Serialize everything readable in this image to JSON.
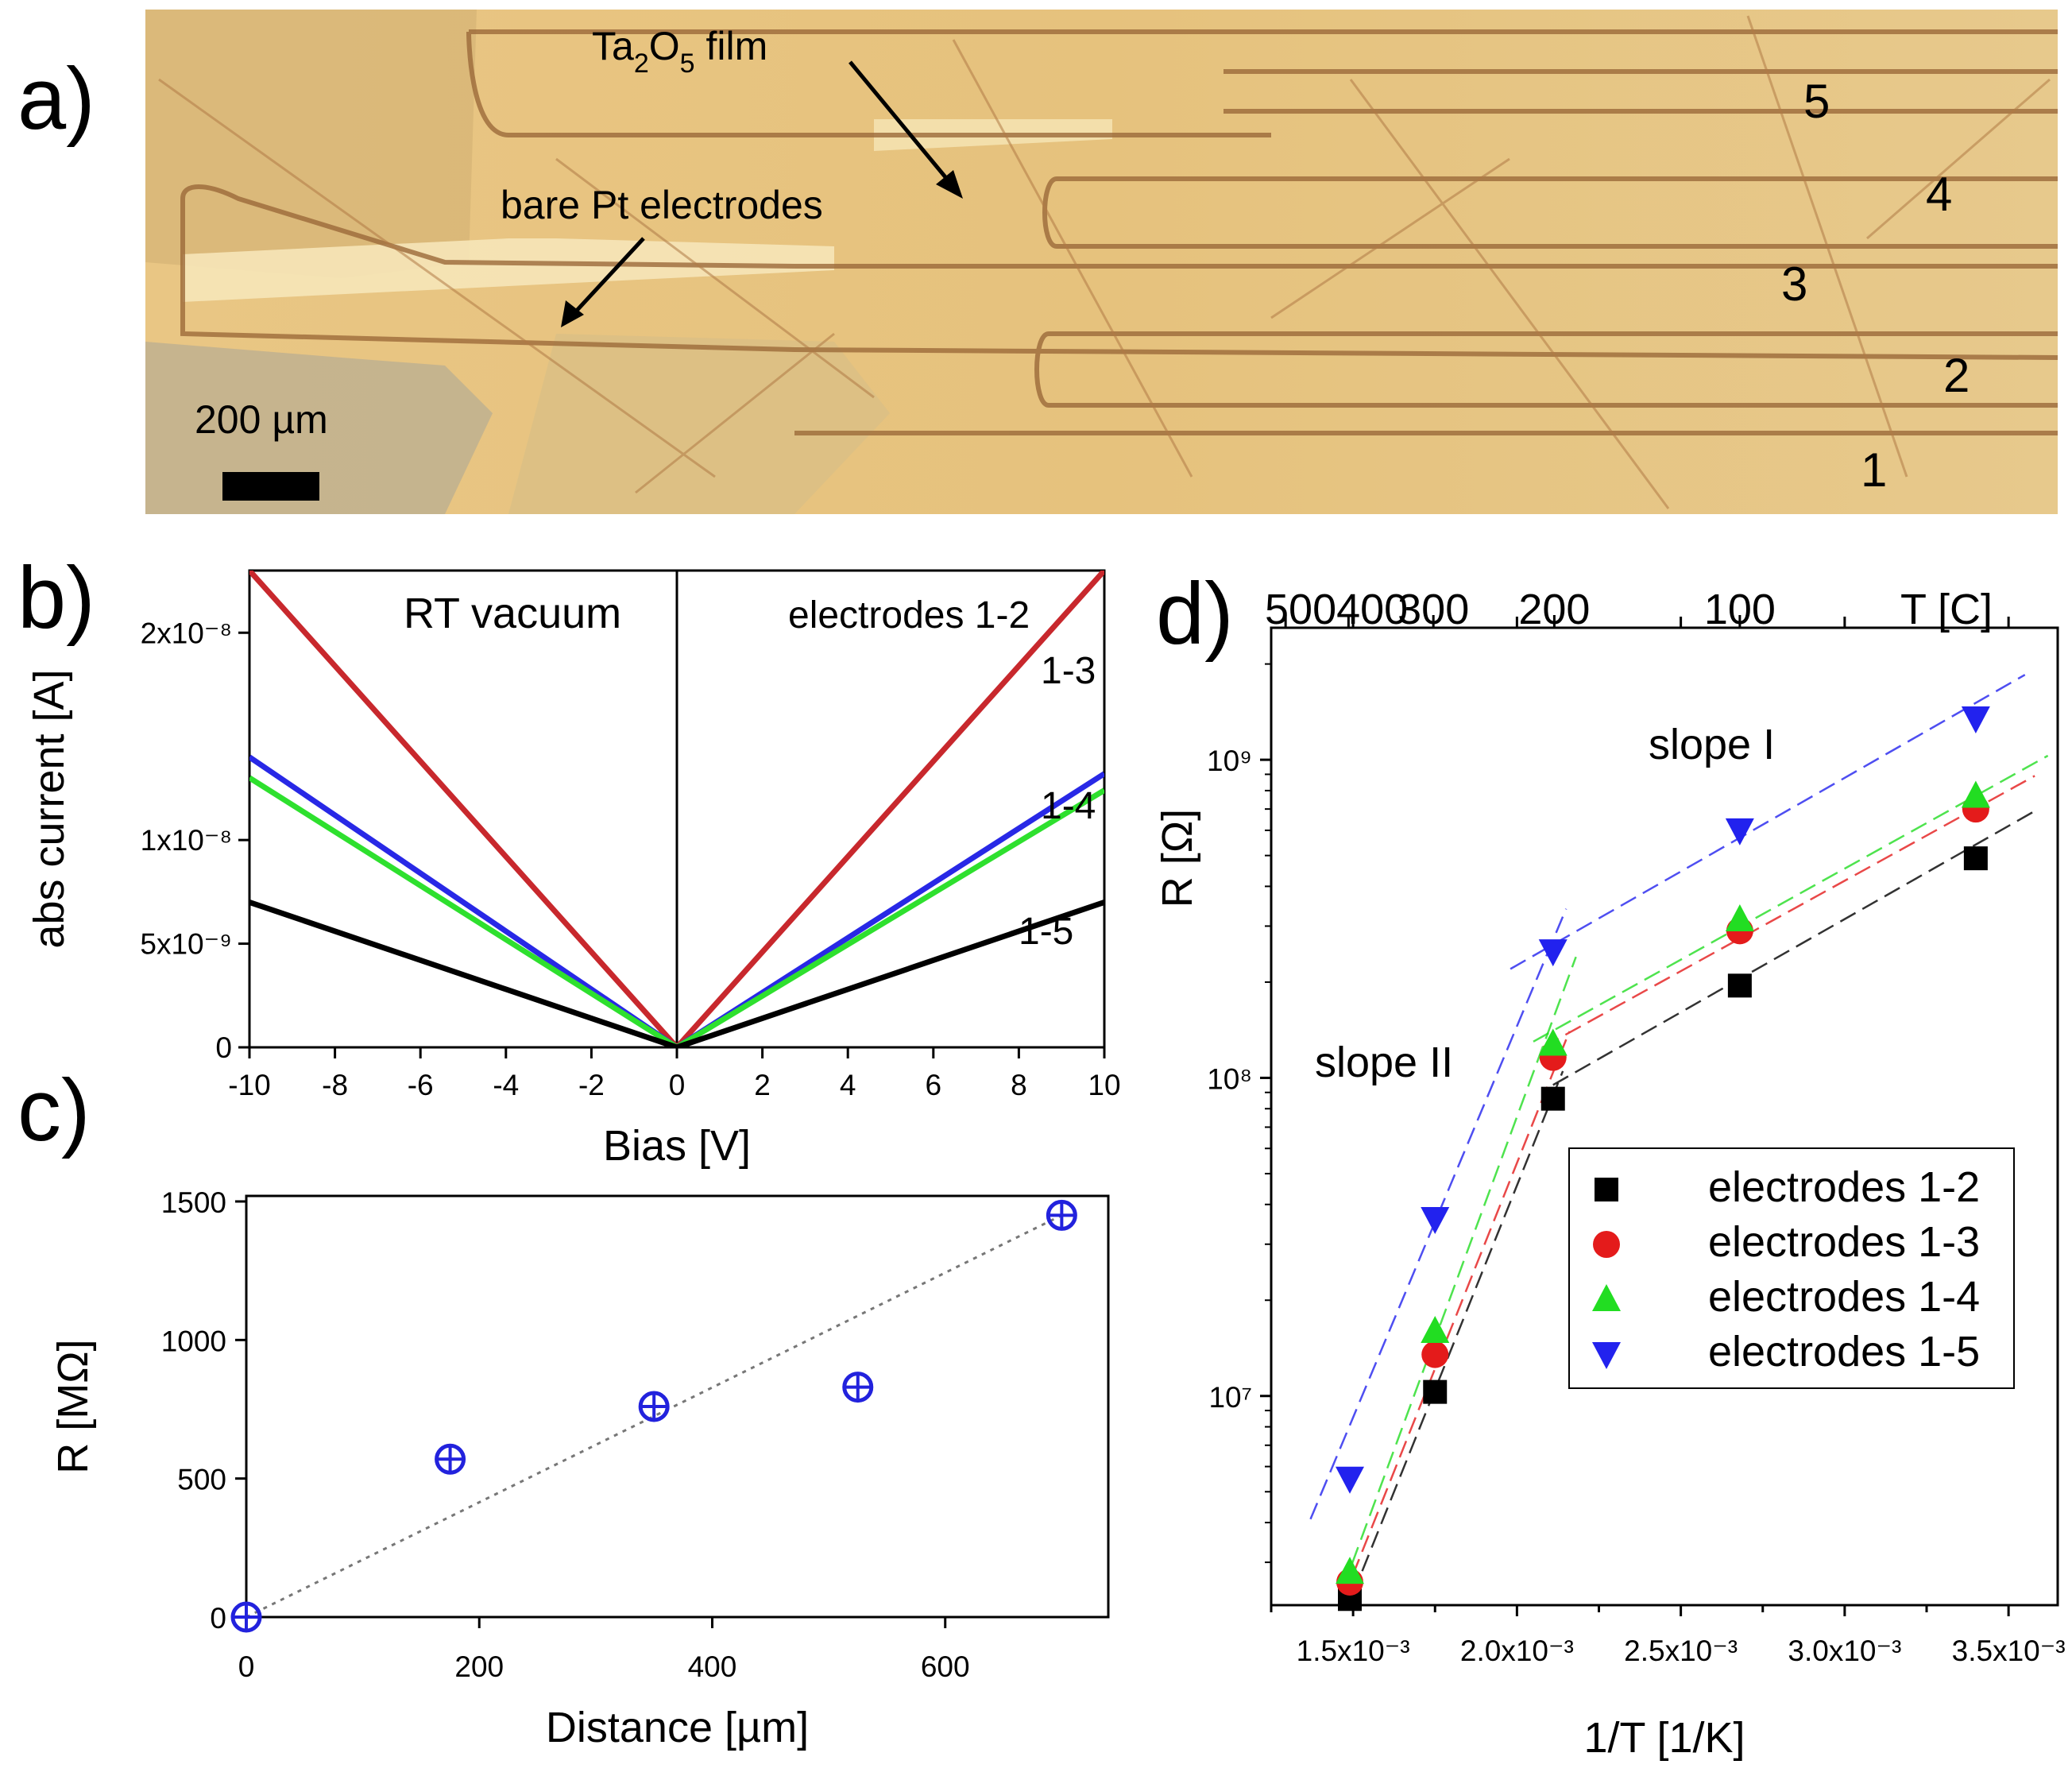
{
  "panels": {
    "a": "a)",
    "b": "b)",
    "c": "c)",
    "d": "d)"
  },
  "photo": {
    "film_label_main": "Ta",
    "film_label_sub1": "2",
    "film_label_mid": "O",
    "film_label_sub2": "5",
    "film_label_end": " film",
    "electrode_label": "bare Pt electrodes",
    "scale_bar": "200 µm",
    "electrode_numbers": [
      "5",
      "4",
      "3",
      "2",
      "1"
    ]
  },
  "chart_data": [
    {
      "id": "b",
      "type": "line",
      "title": "",
      "xlabel": "Bias [V]",
      "ylabel": "abs current [A]",
      "xlim": [
        -10,
        10
      ],
      "ylim": [
        0,
        2.3e-08
      ],
      "xticks": [
        -10,
        -8,
        -6,
        -4,
        -2,
        0,
        2,
        4,
        6,
        8,
        10
      ],
      "ytick_values": [
        0,
        5e-09,
        1e-08,
        2e-08
      ],
      "ytick_labels": [
        "0",
        "5x10⁻⁹",
        "1x10⁻⁸",
        "2x10⁻⁸"
      ],
      "annotations": [
        "RT vacuum",
        "electrodes 1-2",
        "1-3",
        "1-4",
        "1-5"
      ],
      "series": [
        {
          "name": "1-2",
          "color": "#c8282d",
          "x": [
            -10,
            0,
            10
          ],
          "y": [
            2.3e-08,
            0,
            2.3e-08
          ]
        },
        {
          "name": "1-3",
          "color": "#2828e6",
          "x": [
            -10,
            0,
            10
          ],
          "y": [
            1.4e-08,
            0,
            1.32e-08
          ]
        },
        {
          "name": "1-4",
          "color": "#2ee02e",
          "x": [
            -10,
            0,
            10
          ],
          "y": [
            1.3e-08,
            0,
            1.24e-08
          ]
        },
        {
          "name": "1-5",
          "color": "#000000",
          "x": [
            -10,
            0,
            10
          ],
          "y": [
            7e-09,
            0,
            7e-09
          ]
        }
      ]
    },
    {
      "id": "c",
      "type": "scatter",
      "xlabel": "Distance [µm]",
      "ylabel": "R [MΩ]",
      "xlim": [
        0,
        740
      ],
      "ylim": [
        0,
        1520
      ],
      "xticks": [
        0,
        200,
        400,
        600
      ],
      "yticks": [
        0,
        500,
        1000,
        1500
      ],
      "points": {
        "x": [
          0,
          175,
          350,
          525,
          700
        ],
        "y": [
          0,
          570,
          760,
          830,
          1450
        ]
      },
      "fit": {
        "x": [
          0,
          700
        ],
        "y": [
          0,
          1450
        ]
      },
      "color": "#2222dd"
    },
    {
      "id": "d",
      "type": "scatter",
      "xlabel": "1/T [1/K]",
      "ylabel": "R [Ω]",
      "top_axis_label": "T [C]",
      "xlim": [
        0.00125,
        0.00365
      ],
      "ylim_log": [
        2200000.0,
        2600000000.0
      ],
      "xtick_values": [
        0.0015,
        0.002,
        0.0025,
        0.003,
        0.0035
      ],
      "xtick_labels": [
        "1.5x10⁻³",
        "2.0x10⁻³",
        "2.5x10⁻³",
        "3.0x10⁻³",
        "3.5x10⁻³"
      ],
      "ytick_values": [
        10000000.0,
        100000000.0,
        1000000000.0
      ],
      "ytick_labels": [
        "10⁷",
        "10⁸",
        "10⁹"
      ],
      "top_ticks": [
        {
          "inv": 0.001294,
          "label": "500"
        },
        {
          "inv": 0.001486,
          "label": "400"
        },
        {
          "inv": 0.001745,
          "label": "300"
        },
        {
          "inv": 0.002114,
          "label": "200"
        },
        {
          "inv": 0.00268,
          "label": "100"
        }
      ],
      "annotations": [
        "slope I",
        "slope II"
      ],
      "legend_position": "lower-right",
      "series": [
        {
          "name": "electrodes 1-2",
          "marker": "square",
          "color": "#000000",
          "x": [
            0.00149,
            0.00175,
            0.00211,
            0.00268,
            0.0034
          ],
          "y": [
            2300000.0,
            10300000.0,
            86000000.0,
            195000000.0,
            490000000.0
          ],
          "fits": [
            {
              "x": [
                0.00147,
                0.00214
              ],
              "y": [
                2000000.0,
                105000000.0
              ]
            },
            {
              "x": [
                0.00211,
                0.00358
              ],
              "y": [
                95000000.0,
                690000000.0
              ]
            }
          ]
        },
        {
          "name": "electrodes 1-3",
          "marker": "circle",
          "color": "#e41b1b",
          "x": [
            0.00149,
            0.00175,
            0.00211,
            0.00268,
            0.0034
          ],
          "y": [
            2600000.0,
            13500000.0,
            116000000.0,
            290000000.0,
            700000000.0
          ],
          "fits": [
            {
              "x": [
                0.00147,
                0.00216
              ],
              "y": [
                2300000.0,
                140000000.0
              ]
            },
            {
              "x": [
                0.00208,
                0.00358
              ],
              "y": [
                125000000.0,
                890000000.0
              ]
            }
          ]
        },
        {
          "name": "electrodes 1-4",
          "marker": "triangle-up",
          "color": "#22dd22",
          "x": [
            0.00149,
            0.00175,
            0.00211,
            0.00268,
            0.0034
          ],
          "y": [
            2800000.0,
            16000000.0,
            128000000.0,
            315000000.0,
            770000000.0
          ],
          "fits": [
            {
              "x": [
                0.00147,
                0.00218
              ],
              "y": [
                2500000.0,
                240000000.0
              ]
            },
            {
              "x": [
                0.00205,
                0.00362
              ],
              "y": [
                130000000.0,
                1030000000.0
              ]
            }
          ]
        },
        {
          "name": "electrodes 1-5",
          "marker": "triangle-down",
          "color": "#2222ee",
          "x": [
            0.00149,
            0.00175,
            0.00211,
            0.00268,
            0.0034
          ],
          "y": [
            5500000.0,
            36000000.0,
            250000000.0,
            600000000.0,
            1350000000.0
          ],
          "fits": [
            {
              "x": [
                0.00137,
                0.00215
              ],
              "y": [
                4100000.0,
                340000000.0
              ]
            },
            {
              "x": [
                0.00198,
                0.00355
              ],
              "y": [
                220000000.0,
                1850000000.0
              ]
            }
          ]
        }
      ]
    }
  ]
}
